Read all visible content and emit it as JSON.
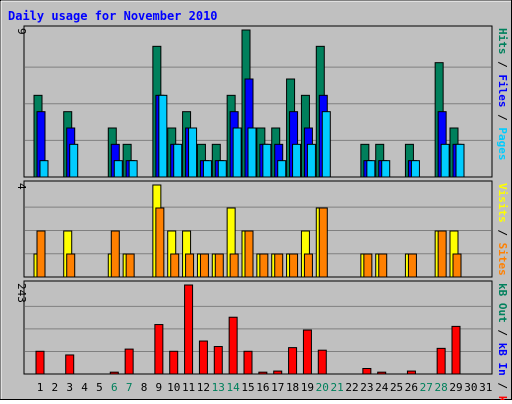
{
  "chart_data": [
    {
      "type": "bar",
      "panel": "hits-files-pages",
      "title": "Daily usage for November 2010",
      "ymax_label": "9",
      "ylim": [
        0,
        9
      ],
      "grid": true,
      "legend_position": "right",
      "legend": [
        {
          "key": "pages",
          "label": "Pages",
          "color": "#00ccff"
        },
        {
          "key": "files",
          "label": "Files",
          "color": "#0000ff"
        },
        {
          "key": "hits",
          "label": "Hits",
          "color": "#00805c"
        }
      ],
      "x": [
        1,
        2,
        3,
        4,
        5,
        6,
        7,
        8,
        9,
        10,
        11,
        12,
        13,
        14,
        15,
        16,
        17,
        18,
        19,
        20,
        21,
        22,
        23,
        24,
        25,
        26,
        27,
        28,
        29,
        30,
        31
      ],
      "series": [
        {
          "key": "hits",
          "values": [
            5,
            0,
            4,
            0,
            0,
            3,
            2,
            0,
            8,
            3,
            4,
            2,
            2,
            5,
            9,
            3,
            3,
            6,
            5,
            8,
            0,
            0,
            2,
            2,
            0,
            2,
            0,
            7,
            3,
            0,
            0
          ]
        },
        {
          "key": "files",
          "values": [
            4,
            0,
            3,
            0,
            0,
            2,
            1,
            0,
            5,
            2,
            3,
            1,
            1,
            4,
            6,
            2,
            2,
            4,
            3,
            5,
            0,
            0,
            1,
            1,
            0,
            1,
            0,
            4,
            2,
            0,
            0
          ]
        },
        {
          "key": "pages",
          "values": [
            1,
            0,
            2,
            0,
            0,
            1,
            1,
            0,
            5,
            2,
            3,
            1,
            1,
            3,
            3,
            2,
            1,
            2,
            2,
            4,
            0,
            0,
            1,
            1,
            0,
            1,
            0,
            2,
            2,
            0,
            0
          ]
        }
      ]
    },
    {
      "type": "bar",
      "panel": "visits-sites",
      "ymax_label": "4",
      "ylim": [
        0,
        4
      ],
      "grid": true,
      "legend_position": "right",
      "legend": [
        {
          "key": "sites",
          "label": "Sites",
          "color": "#ff8000"
        },
        {
          "key": "visits",
          "label": "Visits",
          "color": "#ffff00"
        }
      ],
      "x": [
        1,
        2,
        3,
        4,
        5,
        6,
        7,
        8,
        9,
        10,
        11,
        12,
        13,
        14,
        15,
        16,
        17,
        18,
        19,
        20,
        21,
        22,
        23,
        24,
        25,
        26,
        27,
        28,
        29,
        30,
        31
      ],
      "series": [
        {
          "key": "visits",
          "values": [
            1,
            0,
            2,
            0,
            0,
            1,
            1,
            0,
            4,
            2,
            2,
            1,
            1,
            3,
            2,
            1,
            1,
            1,
            2,
            3,
            0,
            0,
            1,
            1,
            0,
            1,
            0,
            2,
            2,
            0,
            0
          ]
        },
        {
          "key": "sites",
          "values": [
            2,
            0,
            1,
            0,
            0,
            2,
            1,
            0,
            3,
            1,
            1,
            1,
            1,
            1,
            2,
            1,
            1,
            1,
            1,
            3,
            0,
            0,
            1,
            1,
            0,
            1,
            0,
            2,
            1,
            0,
            0
          ]
        }
      ]
    },
    {
      "type": "bar",
      "panel": "kbytes",
      "ymax_label": "243",
      "ylim": [
        0,
        243
      ],
      "grid": true,
      "legend_position": "right",
      "legend": [
        {
          "key": "kb_f",
          "label": "kB F",
          "color": "#ff0000"
        },
        {
          "key": "kb_in",
          "label": "kB In",
          "color": "#0000ff"
        },
        {
          "key": "kb_out",
          "label": "kB Out",
          "color": "#00805c"
        }
      ],
      "x": [
        1,
        2,
        3,
        4,
        5,
        6,
        7,
        8,
        9,
        10,
        11,
        12,
        13,
        14,
        15,
        16,
        17,
        18,
        19,
        20,
        21,
        22,
        23,
        24,
        25,
        26,
        27,
        28,
        29,
        30,
        31
      ],
      "series": [
        {
          "key": "kb_f",
          "values": [
            62,
            0,
            52,
            0,
            0,
            5,
            68,
            0,
            135,
            62,
            243,
            90,
            75,
            155,
            62,
            5,
            8,
            72,
            120,
            65,
            0,
            0,
            15,
            5,
            0,
            8,
            0,
            70,
            130,
            0,
            0
          ]
        }
      ]
    }
  ],
  "weekend_days": [
    6,
    7,
    13,
    14,
    20,
    21,
    27,
    28
  ],
  "colors": {
    "background": "#c0c0c0",
    "plot_background": "#c0c0c0",
    "gridline": "#808080",
    "title": "#0000ff",
    "weekday_label": "#000000",
    "weekend_label": "#00805c",
    "separator": "#000000"
  }
}
